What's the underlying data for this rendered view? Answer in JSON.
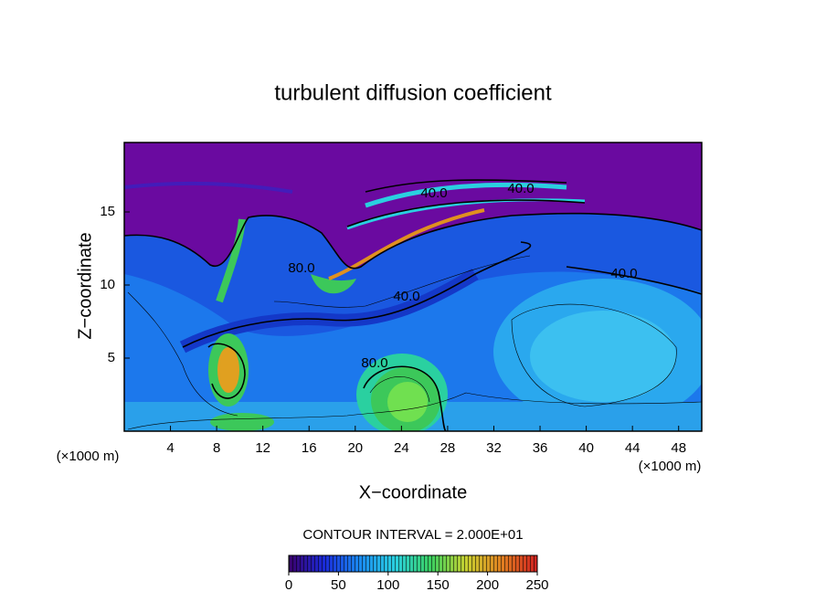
{
  "chart_data": {
    "type": "contour",
    "title": "turbulent diffusion coefficient",
    "x_label": "X−coordinate",
    "y_label": "Z−coordinate",
    "x_unit": "(×1000 m)",
    "y_unit": "(×1000 m)",
    "xlim": [
      0,
      50
    ],
    "ylim": [
      0,
      19.75
    ],
    "xticks": [
      4,
      8,
      12,
      16,
      20,
      24,
      28,
      32,
      36,
      40,
      44,
      48
    ],
    "yticks": [
      5,
      10,
      15
    ],
    "contour_labels": [
      "40.0",
      "40.0",
      "40.0",
      "40.0",
      "80.0",
      "80.0"
    ],
    "contour_interval_label": "CONTOUR INTERVAL = 2.000E+01",
    "colorbar": {
      "lim": [
        0,
        250
      ],
      "ticks": [
        0,
        50,
        100,
        150,
        200,
        250
      ],
      "colors": [
        "#3a006a",
        "#1a2ad8",
        "#1a8af0",
        "#2ad0e0",
        "#3ad060",
        "#c8d030",
        "#e08020",
        "#d02020"
      ]
    }
  }
}
